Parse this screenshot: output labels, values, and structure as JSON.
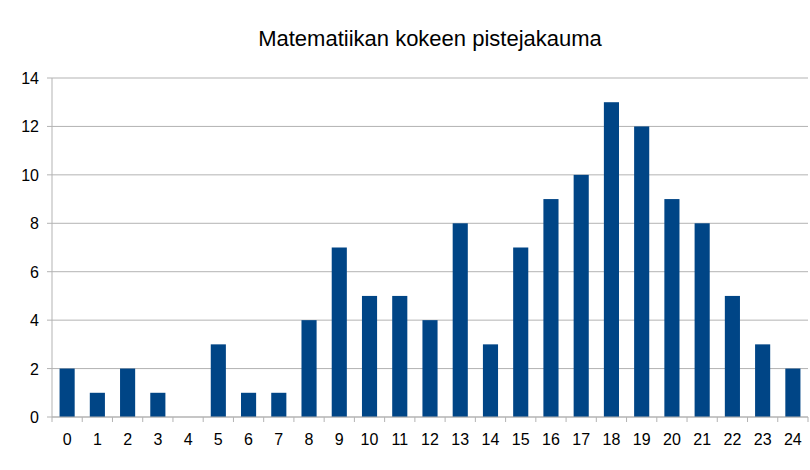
{
  "chart_data": {
    "type": "bar",
    "title": "Matematiikan kokeen pistejakauma",
    "categories": [
      "0",
      "1",
      "2",
      "3",
      "4",
      "5",
      "6",
      "7",
      "8",
      "9",
      "10",
      "11",
      "12",
      "13",
      "14",
      "15",
      "16",
      "17",
      "18",
      "19",
      "20",
      "21",
      "22",
      "23",
      "24"
    ],
    "values": [
      2,
      1,
      2,
      1,
      0,
      3,
      1,
      1,
      4,
      7,
      5,
      5,
      4,
      8,
      3,
      7,
      9,
      10,
      13,
      12,
      9,
      8,
      5,
      3,
      2
    ],
    "color": "#004586",
    "ylim": [
      0,
      14
    ],
    "yticks": [
      0,
      2,
      4,
      6,
      8,
      10,
      12,
      14
    ],
    "grid": true
  }
}
